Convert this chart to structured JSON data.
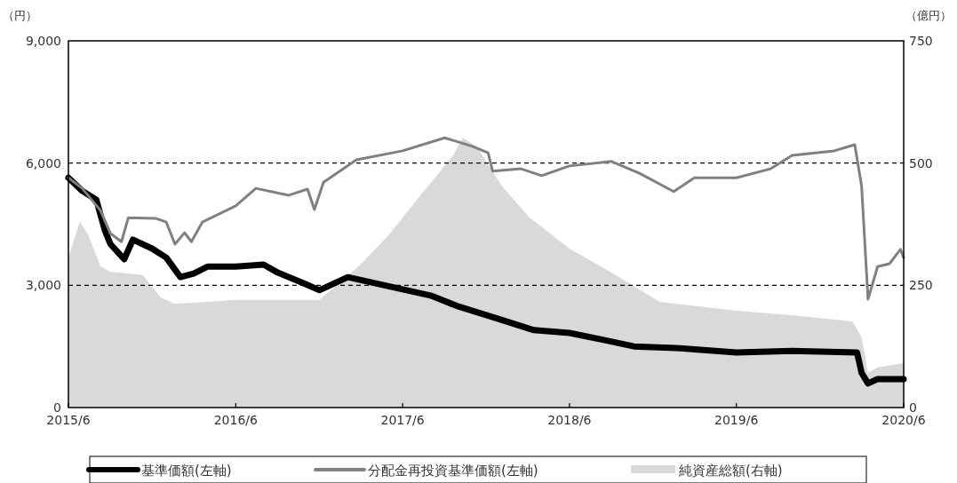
{
  "chart_data": {
    "type": "line",
    "ylabel": "（円）",
    "y2label": "（億円）",
    "xlim": [
      "2015-06",
      "2020-06"
    ],
    "xticks": [
      {
        "value": "2015-06",
        "label": "2015/6"
      },
      {
        "value": "2016-06",
        "label": "2016/6"
      },
      {
        "value": "2017-06",
        "label": "2017/6"
      },
      {
        "value": "2018-06",
        "label": "2018/6"
      },
      {
        "value": "2019-06",
        "label": "2019/6"
      },
      {
        "value": "2020-06",
        "label": "2020/6"
      }
    ],
    "ylim": [
      0,
      9000
    ],
    "yticks": [
      {
        "value": 0,
        "label": "0"
      },
      {
        "value": 3000,
        "label": "3,000"
      },
      {
        "value": 6000,
        "label": "6,000"
      },
      {
        "value": 9000,
        "label": "9,000"
      }
    ],
    "y2lim": [
      0,
      750
    ],
    "y2ticks": [
      0,
      250,
      500,
      750
    ],
    "grid": "y",
    "legend": "bottom",
    "series": [
      {
        "name": "純資産総額(右軸)",
        "type": "area",
        "axis": "y2",
        "color": "#d9d9d9",
        "x": [
          "2015-06-01",
          "2015-06-26",
          "2015-07-15",
          "2015-08-10",
          "2015-08-31",
          "2015-11-10",
          "2015-12-20",
          "2016-01-20",
          "2016-06-01",
          "2016-12-01",
          "2017-02-25",
          "2017-05-01",
          "2017-07-10",
          "2017-09-20",
          "2017-10-10",
          "2017-11-10",
          "2018-01-05",
          "2018-03-05",
          "2018-06-01",
          "2018-09-10",
          "2018-12-15",
          "2019-06-01",
          "2019-10-01",
          "2020-02-10",
          "2020-03-01",
          "2020-03-15",
          "2020-04-05",
          "2020-06-01"
        ],
        "values": [
          307,
          380,
          352,
          289,
          278,
          271,
          225,
          212,
          220,
          220,
          289,
          352,
          434,
          516,
          552,
          534,
          452,
          389,
          325,
          271,
          216,
          198,
          189,
          176,
          143,
          71,
          82,
          91
        ]
      },
      {
        "name": "基準価額(左軸)",
        "color": "#000000",
        "x": [
          "2015-06-01",
          "2015-07-01",
          "2015-08-01",
          "2015-08-20",
          "2015-09-01",
          "2015-10-01",
          "2015-10-20",
          "2015-12-01",
          "2016-01-01",
          "2016-02-01",
          "2016-03-01",
          "2016-04-01",
          "2016-06-01",
          "2016-08-01",
          "2016-09-01",
          "2016-11-01",
          "2016-12-01",
          "2017-02-01",
          "2017-06-01",
          "2017-08-01",
          "2017-10-01",
          "2018-01-01",
          "2018-03-15",
          "2018-06-01",
          "2018-08-15",
          "2018-10-20",
          "2019-01-20",
          "2019-06-01",
          "2019-10-01",
          "2020-02-20",
          "2020-03-01",
          "2020-03-15",
          "2020-04-05",
          "2020-06-01"
        ],
        "values": [
          5640,
          5320,
          5100,
          4340,
          4010,
          3640,
          4120,
          3900,
          3680,
          3200,
          3290,
          3460,
          3460,
          3510,
          3310,
          3030,
          2880,
          3200,
          2900,
          2750,
          2480,
          2160,
          1900,
          1830,
          1660,
          1500,
          1460,
          1350,
          1390,
          1350,
          850,
          590,
          700,
          700
        ]
      },
      {
        "name": "分配金再投資基準価額(左軸)",
        "color": "#808080",
        "x": [
          "2015-06-01",
          "2015-07-01",
          "2015-08-10",
          "2015-09-01",
          "2015-09-25",
          "2015-10-10",
          "2015-12-10",
          "2016-01-01",
          "2016-01-20",
          "2016-02-10",
          "2016-02-25",
          "2016-03-20",
          "2016-06-01",
          "2016-07-15",
          "2016-09-25",
          "2016-11-05",
          "2016-11-20",
          "2016-12-10",
          "2017-02-20",
          "2017-06-01",
          "2017-09-01",
          "2017-11-01",
          "2017-12-05",
          "2017-12-15",
          "2018-02-15",
          "2018-04-01",
          "2018-06-01",
          "2018-09-01",
          "2018-11-01",
          "2019-01-15",
          "2019-03-01",
          "2019-06-01",
          "2019-08-15",
          "2019-10-01",
          "2020-01-01",
          "2020-02-15",
          "2020-03-01",
          "2020-03-15",
          "2020-04-05",
          "2020-05-01",
          "2020-05-25",
          "2020-06-01"
        ],
        "values": [
          5640,
          5380,
          4840,
          4270,
          4070,
          4660,
          4640,
          4550,
          4010,
          4290,
          4070,
          4550,
          4950,
          5380,
          5210,
          5360,
          4860,
          5530,
          6080,
          6300,
          6620,
          6410,
          6250,
          5800,
          5860,
          5690,
          5930,
          6040,
          5750,
          5300,
          5640,
          5640,
          5860,
          6190,
          6300,
          6450,
          5430,
          2660,
          3460,
          3530,
          3880,
          3680
        ]
      }
    ]
  }
}
